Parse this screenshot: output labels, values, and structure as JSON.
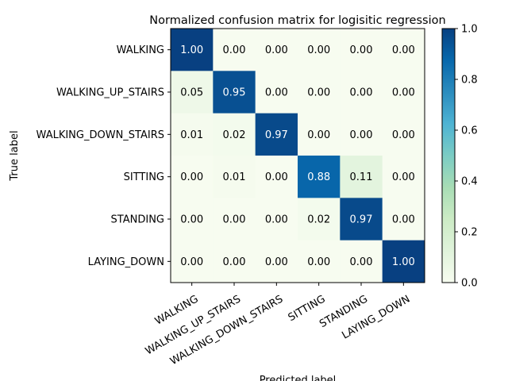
{
  "chart_data": {
    "type": "heatmap",
    "title": "Normalized confusion matrix for logisitic regression",
    "xlabel": "Predicted label",
    "ylabel": "True label",
    "x_categories": [
      "WALKING",
      "WALKING_UP_STAIRS",
      "WALKING_DOWN_STAIRS",
      "SITTING",
      "STANDING",
      "LAYING_DOWN"
    ],
    "y_categories": [
      "WALKING",
      "WALKING_UP_STAIRS",
      "WALKING_DOWN_STAIRS",
      "SITTING",
      "STANDING",
      "LAYING_DOWN"
    ],
    "values": [
      [
        1.0,
        0.0,
        0.0,
        0.0,
        0.0,
        0.0
      ],
      [
        0.05,
        0.95,
        0.0,
        0.0,
        0.0,
        0.0
      ],
      [
        0.01,
        0.02,
        0.97,
        0.0,
        0.0,
        0.0
      ],
      [
        0.0,
        0.01,
        0.0,
        0.88,
        0.11,
        0.0
      ],
      [
        0.0,
        0.0,
        0.0,
        0.02,
        0.97,
        0.0
      ],
      [
        0.0,
        0.0,
        0.0,
        0.0,
        0.0,
        1.0
      ]
    ],
    "colormap": "GnBu",
    "colorbar": {
      "range": [
        0.0,
        1.0
      ],
      "ticks": [
        "0.0",
        "0.2",
        "0.4",
        "0.6",
        "0.8",
        "1.0"
      ]
    },
    "x_tick_rotation_deg": 30,
    "text_color_light": "#ffffff",
    "text_color_dark": "#000000"
  }
}
